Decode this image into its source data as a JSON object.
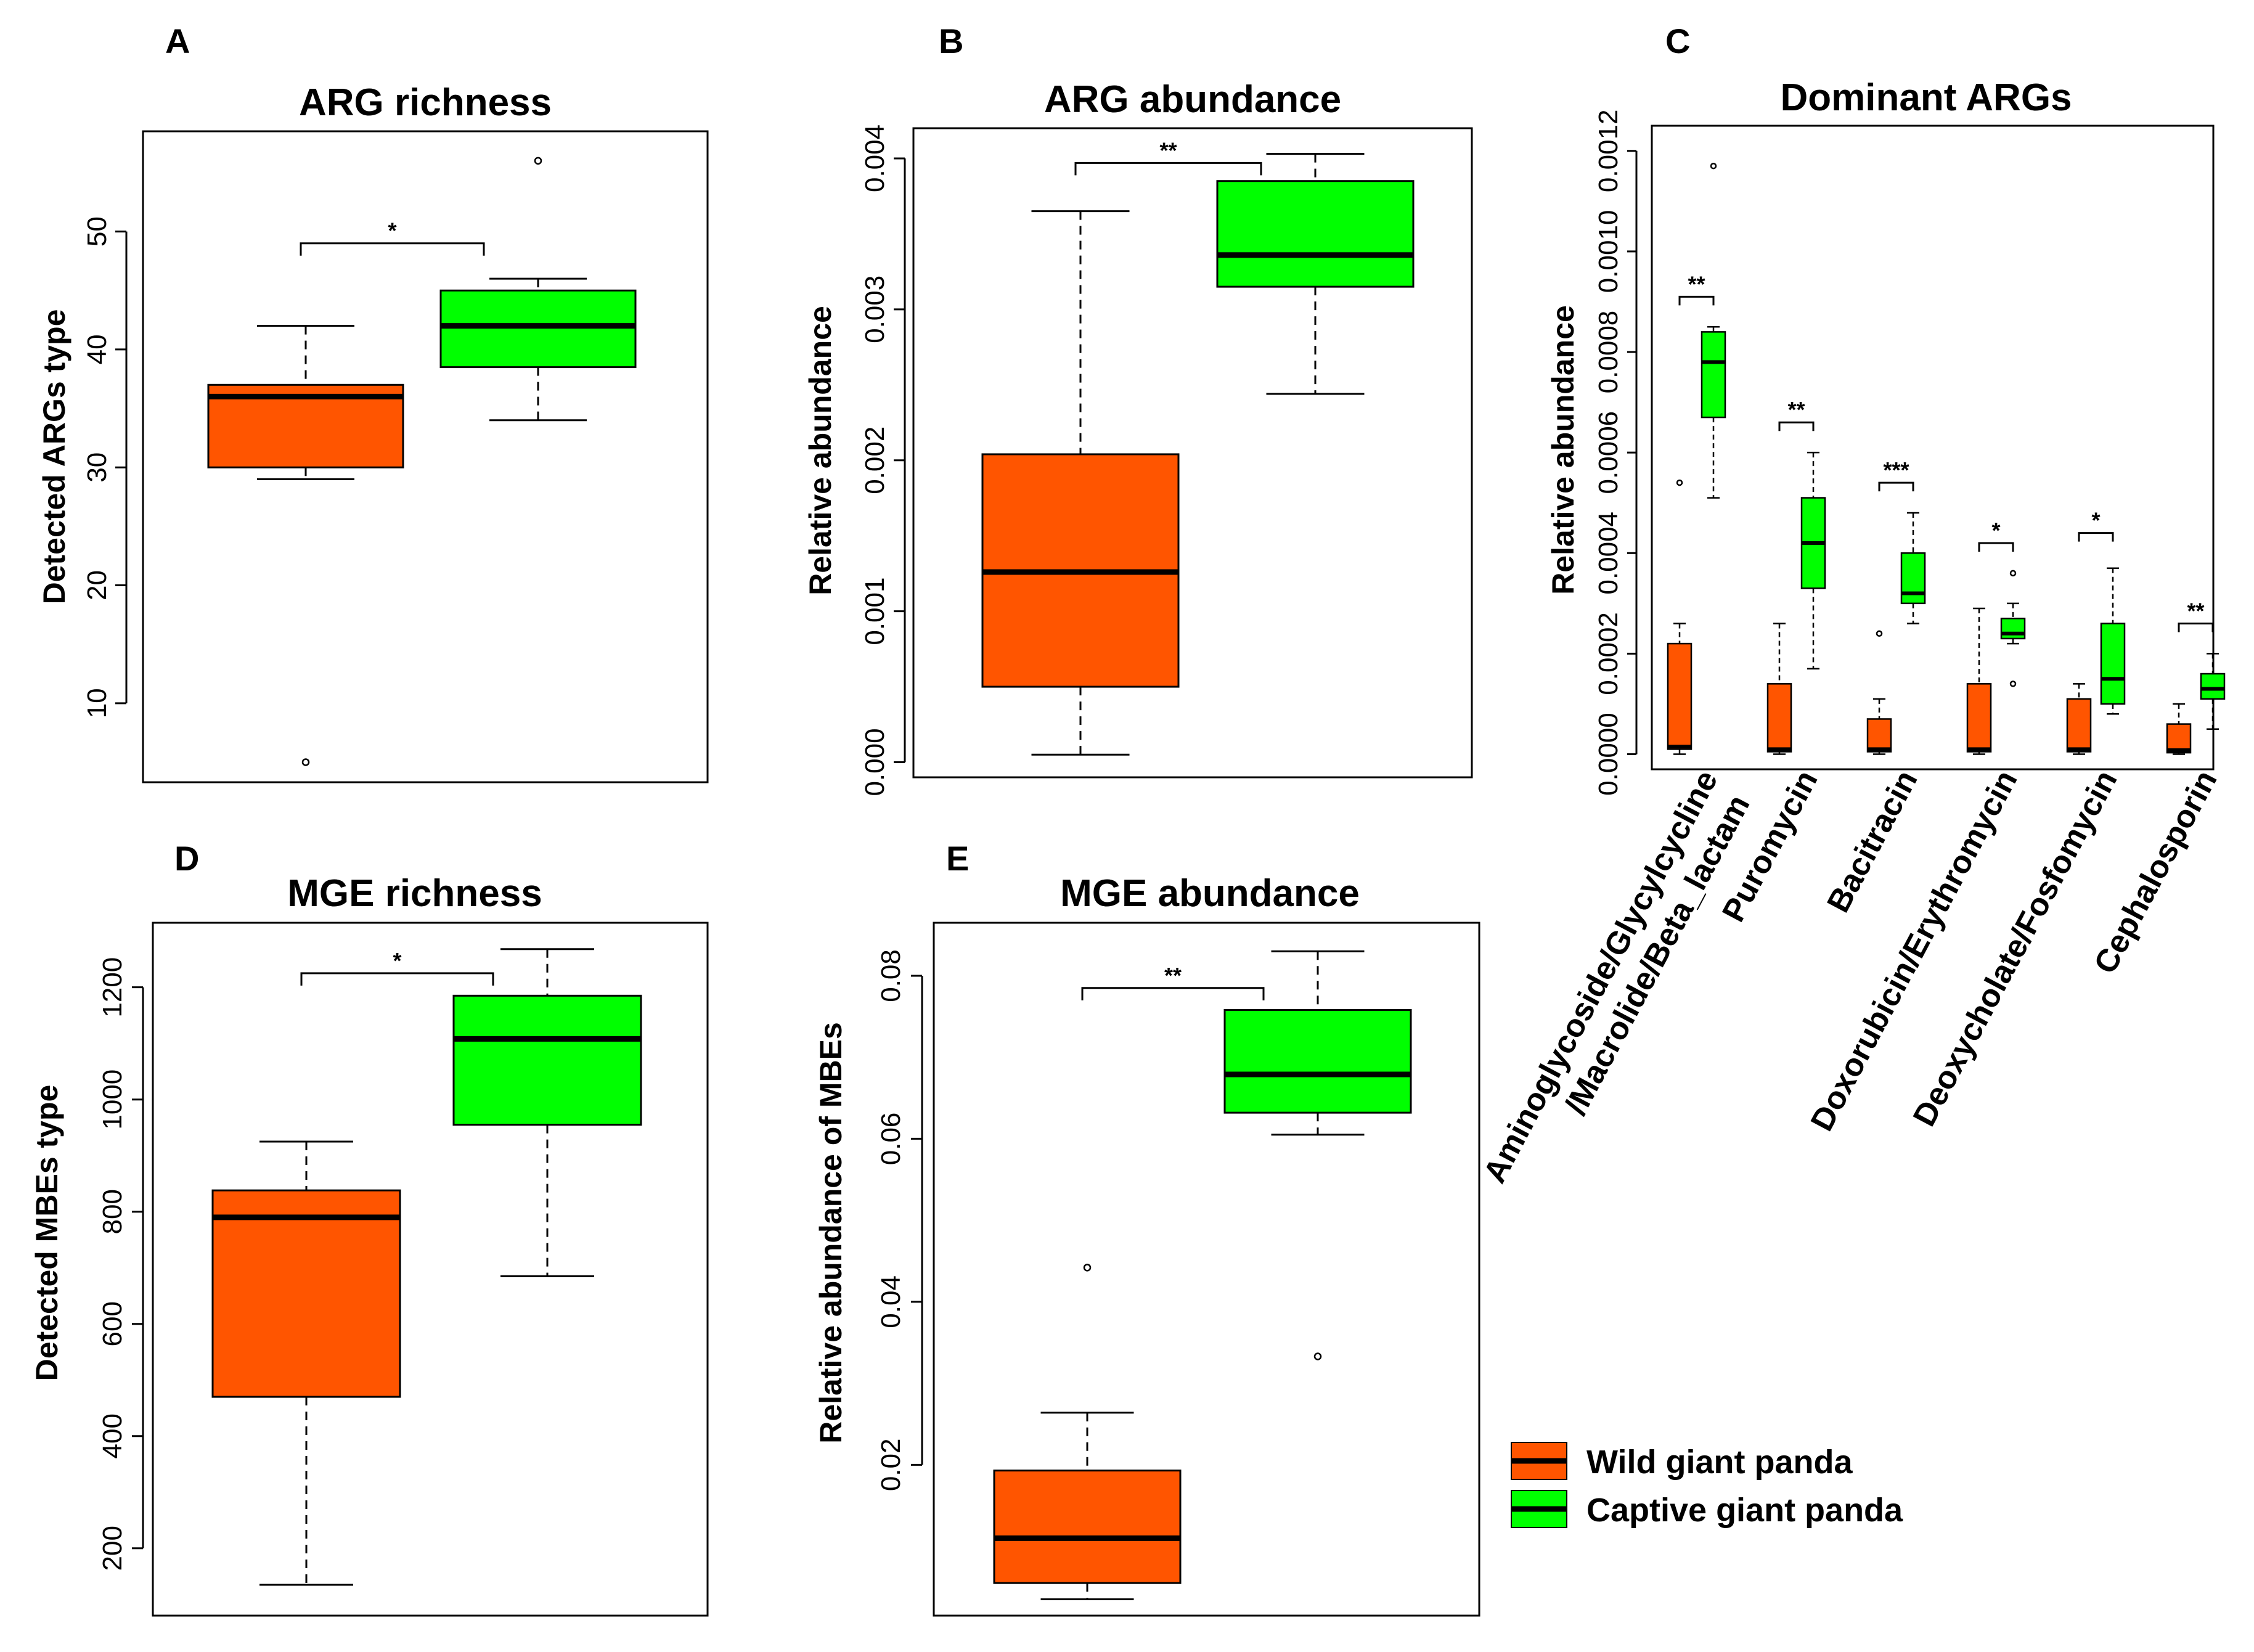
{
  "colors": {
    "wild": "#ff5500",
    "captive": "#00ff00",
    "median": "#000000"
  },
  "legend": {
    "wild": "Wild giant panda",
    "captive": "Captive giant panda"
  },
  "chart_data": [
    {
      "id": "A",
      "letter": "A",
      "type": "box",
      "title": "ARG richness",
      "ylabel": "Detected ARGs type",
      "ylim": [
        3.3,
        58.5
      ],
      "yticks": [
        10,
        20,
        30,
        40,
        50
      ],
      "groups": [
        {
          "name": "Wild giant panda",
          "whisker_low": 29,
          "q1": 30,
          "median": 36,
          "q3": 37,
          "whisker_high": 42,
          "outliers": [
            5
          ]
        },
        {
          "name": "Captive giant panda",
          "whisker_low": 34,
          "q1": 38.5,
          "median": 42,
          "q3": 45,
          "whisker_high": 46,
          "outliers": [
            56
          ]
        }
      ],
      "sig": "*",
      "sig_y": 49
    },
    {
      "id": "B",
      "letter": "B",
      "type": "box",
      "title": "ARG abundance",
      "ylabel": "Relative abundance",
      "ylim": [
        -0.0001,
        0.0042
      ],
      "yticks": [
        "0.000",
        "0.001",
        "0.002",
        "0.003",
        "0.004"
      ],
      "groups": [
        {
          "name": "Wild giant panda",
          "whisker_low": 5e-05,
          "q1": 0.0005,
          "median": 0.00126,
          "q3": 0.00204,
          "whisker_high": 0.00365,
          "outliers": []
        },
        {
          "name": "Captive giant panda",
          "whisker_low": 0.00244,
          "q1": 0.00315,
          "median": 0.00336,
          "q3": 0.00385,
          "whisker_high": 0.00403,
          "outliers": []
        }
      ],
      "sig": "**",
      "sig_y": 0.00397
    },
    {
      "id": "C",
      "letter": "C",
      "type": "grouped-box",
      "title": "Dominant ARGs",
      "ylabel": "Relative abundance",
      "ylim": [
        -3e-05,
        0.00125
      ],
      "yticks": [
        "0.0000",
        "0.0002",
        "0.0004",
        "0.0006",
        "0.0008",
        "0.0010",
        "0.0012"
      ],
      "categories": [
        {
          "label": "Aminoglycoside/Glycylcycline",
          "label2": "/Macrolide/Beta_lactam",
          "sig": "**",
          "sig_y": 0.00091,
          "wild": {
            "whisker_low": 0.0,
            "q1": 1e-05,
            "median": 1.5e-05,
            "q3": 0.00022,
            "whisker_high": 0.00026,
            "outliers": [
              0.00054
            ]
          },
          "captive": {
            "whisker_low": 0.00051,
            "q1": 0.00067,
            "median": 0.00078,
            "q3": 0.00084,
            "whisker_high": 0.00085,
            "outliers": [
              0.00117
            ]
          }
        },
        {
          "label": "Puromycin",
          "label2": "",
          "sig": "**",
          "sig_y": 0.00066,
          "wild": {
            "whisker_low": 0.0,
            "q1": 5e-06,
            "median": 1e-05,
            "q3": 0.00014,
            "whisker_high": 0.00026,
            "outliers": []
          },
          "captive": {
            "whisker_low": 0.00017,
            "q1": 0.00033,
            "median": 0.00042,
            "q3": 0.00051,
            "whisker_high": 0.0006,
            "outliers": []
          }
        },
        {
          "label": "Bacitracin",
          "label2": "",
          "sig": "***",
          "sig_y": 0.00054,
          "wild": {
            "whisker_low": 0.0,
            "q1": 5e-06,
            "median": 1e-05,
            "q3": 7e-05,
            "whisker_high": 0.00011,
            "outliers": [
              0.00024
            ]
          },
          "captive": {
            "whisker_low": 0.00026,
            "q1": 0.0003,
            "median": 0.00032,
            "q3": 0.0004,
            "whisker_high": 0.00048,
            "outliers": []
          }
        },
        {
          "label": "Doxorubicin/Erythromycin",
          "label2": "",
          "sig": "*",
          "sig_y": 0.00042,
          "wild": {
            "whisker_low": 0.0,
            "q1": 5e-06,
            "median": 1e-05,
            "q3": 0.00014,
            "whisker_high": 0.00029,
            "outliers": []
          },
          "captive": {
            "whisker_low": 0.00022,
            "q1": 0.00023,
            "median": 0.00024,
            "q3": 0.00027,
            "whisker_high": 0.0003,
            "outliers": [
              0.00036,
              0.00014
            ]
          }
        },
        {
          "label": "Deoxycholate/Fosfomycin",
          "label2": "",
          "sig": "*",
          "sig_y": 0.00044,
          "wild": {
            "whisker_low": 0.0,
            "q1": 5e-06,
            "median": 1e-05,
            "q3": 0.00011,
            "whisker_high": 0.00014,
            "outliers": []
          },
          "captive": {
            "whisker_low": 8e-05,
            "q1": 0.0001,
            "median": 0.00015,
            "q3": 0.00026,
            "whisker_high": 0.00037,
            "outliers": []
          }
        },
        {
          "label": "Cephalosporin",
          "label2": "",
          "sig": "**",
          "sig_y": 0.00026,
          "wild": {
            "whisker_low": 0.0,
            "q1": 3e-06,
            "median": 8e-06,
            "q3": 6e-05,
            "whisker_high": 0.0001,
            "outliers": []
          },
          "captive": {
            "whisker_low": 5e-05,
            "q1": 0.00011,
            "median": 0.00013,
            "q3": 0.00016,
            "whisker_high": 0.0002,
            "outliers": []
          }
        }
      ]
    },
    {
      "id": "D",
      "letter": "D",
      "type": "box",
      "title": "MGE richness",
      "ylabel": "Detected MBEs type",
      "ylim": [
        80,
        1315
      ],
      "yticks": [
        200,
        400,
        600,
        800,
        1000,
        1200
      ],
      "groups": [
        {
          "name": "Wild giant panda",
          "whisker_low": 135,
          "q1": 470,
          "median": 790,
          "q3": 838,
          "whisker_high": 925,
          "outliers": []
        },
        {
          "name": "Captive giant panda",
          "whisker_low": 685,
          "q1": 955,
          "median": 1108,
          "q3": 1185,
          "whisker_high": 1268,
          "outliers": []
        }
      ],
      "sig": "*",
      "sig_y": 1225
    },
    {
      "id": "E",
      "letter": "E",
      "type": "box",
      "title": "MGE abundance",
      "ylabel": "Relative abundance of MBEs",
      "ylim": [
        0.0015,
        0.0865
      ],
      "yticks": [
        "0.02",
        "0.04",
        "0.06",
        "0.08"
      ],
      "groups": [
        {
          "name": "Wild giant panda",
          "whisker_low": 0.0035,
          "q1": 0.0055,
          "median": 0.011,
          "q3": 0.0193,
          "whisker_high": 0.0264,
          "outliers": [
            0.0442
          ]
        },
        {
          "name": "Captive giant panda",
          "whisker_low": 0.0605,
          "q1": 0.0632,
          "median": 0.0679,
          "q3": 0.0758,
          "whisker_high": 0.083,
          "outliers": [
            0.0333
          ]
        }
      ],
      "sig": "**",
      "sig_y": 0.0785
    }
  ]
}
